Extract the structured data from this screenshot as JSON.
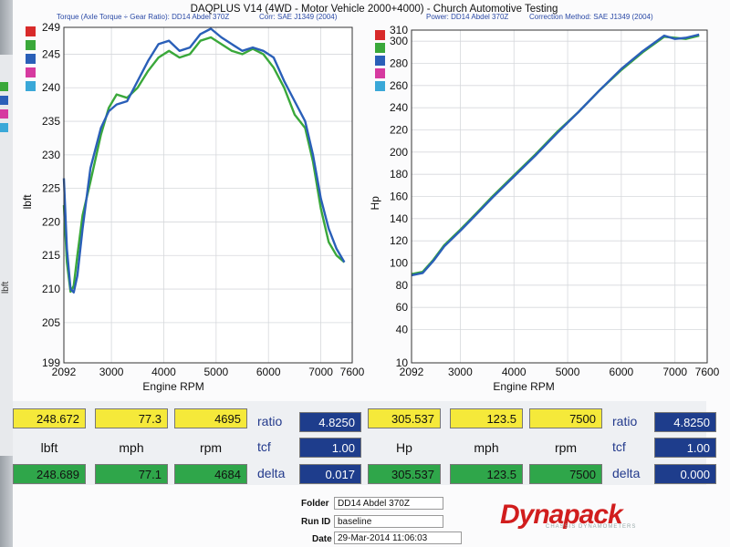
{
  "header": {
    "title": "DAQPLUS V14 (4WD - Motor Vehicle 2000+4000) - Church Automotive Testing",
    "left_subtitle": "Torque (Axle Torque ÷ Gear Ratio): DD14 Abdel 370Z",
    "left_corr": "Corr: SAE J1349 (2004)",
    "right_subtitle": "Power: DD14 Abdel 370Z",
    "right_corr": "Correction Method: SAE J1349 (2004)"
  },
  "colors": {
    "series_green": "#3aa83a",
    "series_blue": "#2a5fb8",
    "axis_blue": "#2b4aa6"
  },
  "side_label": "lbft",
  "chart_data": [
    {
      "type": "line",
      "title": "Torque (Axle Torque ÷ Gear Ratio): DD14 Abdel 370Z",
      "xlabel": "Engine RPM",
      "ylabel": "lbft",
      "xlim": [
        2092,
        7600
      ],
      "ylim": [
        199,
        249
      ],
      "xticks": [
        "2092",
        "3000",
        "4000",
        "5000",
        "6000",
        "7000",
        "7600"
      ],
      "yticks": [
        "199",
        "205",
        "210",
        "215",
        "220",
        "225",
        "230",
        "235",
        "240",
        "245",
        "249"
      ],
      "grid": true,
      "series": [
        {
          "color": "#3aa83a",
          "x": [
            2092,
            2150,
            2220,
            2280,
            2350,
            2450,
            2600,
            2800,
            2950,
            3100,
            3300,
            3500,
            3700,
            3900,
            4100,
            4300,
            4500,
            4700,
            4900,
            5100,
            5300,
            5500,
            5700,
            5900,
            6100,
            6300,
            6500,
            6700,
            6850,
            7000,
            7150,
            7300,
            7450
          ],
          "y": [
            222.5,
            214,
            209.6,
            210.5,
            215,
            221,
            226,
            233,
            237,
            239,
            238.5,
            240,
            242.5,
            244.5,
            245.5,
            244.5,
            245,
            247,
            247.5,
            246.5,
            245.5,
            245,
            245.8,
            245,
            243,
            240,
            236,
            234,
            229,
            222,
            217,
            215,
            214
          ]
        },
        {
          "color": "#2a5fb8",
          "x": [
            2092,
            2150,
            2220,
            2280,
            2350,
            2450,
            2600,
            2800,
            2950,
            3100,
            3300,
            3500,
            3700,
            3900,
            4100,
            4300,
            4500,
            4700,
            4900,
            5100,
            5300,
            5500,
            5700,
            5900,
            6100,
            6300,
            6500,
            6700,
            6850,
            7000,
            7150,
            7300,
            7450
          ],
          "y": [
            226.5,
            216,
            210,
            209.5,
            212,
            219,
            228,
            234,
            236.5,
            237.5,
            238,
            241,
            244,
            246.5,
            247,
            245.5,
            246,
            248,
            248.8,
            247.5,
            246.5,
            245.5,
            246,
            245.5,
            244.5,
            241,
            238,
            235,
            230,
            223.5,
            219,
            216,
            214
          ]
        }
      ]
    },
    {
      "type": "line",
      "title": "Power: DD14 Abdel 370Z",
      "xlabel": "Engine RPM",
      "ylabel": "Hp",
      "xlim": [
        2092,
        7600
      ],
      "ylim": [
        10,
        310
      ],
      "xticks": [
        "2092",
        "3000",
        "4000",
        "5000",
        "6000",
        "7000",
        "7600"
      ],
      "yticks": [
        "10",
        "40",
        "60",
        "80",
        "100",
        "120",
        "140",
        "160",
        "180",
        "200",
        "220",
        "240",
        "260",
        "280",
        "300",
        "310"
      ],
      "grid": true,
      "series": [
        {
          "color": "#3aa83a",
          "x": [
            2092,
            2300,
            2500,
            2700,
            3000,
            3300,
            3600,
            4000,
            4400,
            4800,
            5200,
            5600,
            6000,
            6400,
            6800,
            7000,
            7200,
            7450
          ],
          "y": [
            90,
            92,
            103,
            116,
            130,
            145,
            160,
            179,
            198,
            218,
            236,
            256,
            274,
            290,
            304,
            303,
            302,
            305
          ]
        },
        {
          "color": "#2a5fb8",
          "x": [
            2092,
            2300,
            2500,
            2700,
            3000,
            3300,
            3600,
            4000,
            4400,
            4800,
            5200,
            5600,
            6000,
            6400,
            6800,
            7000,
            7200,
            7450
          ],
          "y": [
            89,
            91,
            102,
            115,
            129,
            144,
            159,
            178,
            197,
            217,
            236,
            256,
            275,
            291,
            305,
            302,
            303,
            306
          ]
        }
      ]
    }
  ],
  "table": {
    "left": {
      "yellow": [
        "248.672",
        "77.3",
        "4695"
      ],
      "units": [
        "lbft",
        "mph",
        "rpm"
      ],
      "green": [
        "248.689",
        "77.1",
        "4684"
      ],
      "labels": [
        "ratio",
        "tcf",
        "delta"
      ],
      "navy": [
        "4.8250",
        "1.00",
        "0.017"
      ]
    },
    "right": {
      "yellow": [
        "305.537",
        "123.5",
        "7500"
      ],
      "units": [
        "Hp",
        "mph",
        "rpm"
      ],
      "green": [
        "305.537",
        "123.5",
        "7500"
      ],
      "labels": [
        "ratio",
        "tcf",
        "delta"
      ],
      "navy": [
        "4.8250",
        "1.00",
        "0.000"
      ]
    }
  },
  "footer": {
    "folder_label": "Folder",
    "folder_value": "DD14 Abdel 370Z",
    "runid_label": "Run ID",
    "runid_value": "baseline",
    "date_label": "Date",
    "date_value": "29-Mar-2014 11:06:03",
    "logo": "Dynapack",
    "logo_sub": "CHASSIS DYNAMOMETERS"
  }
}
